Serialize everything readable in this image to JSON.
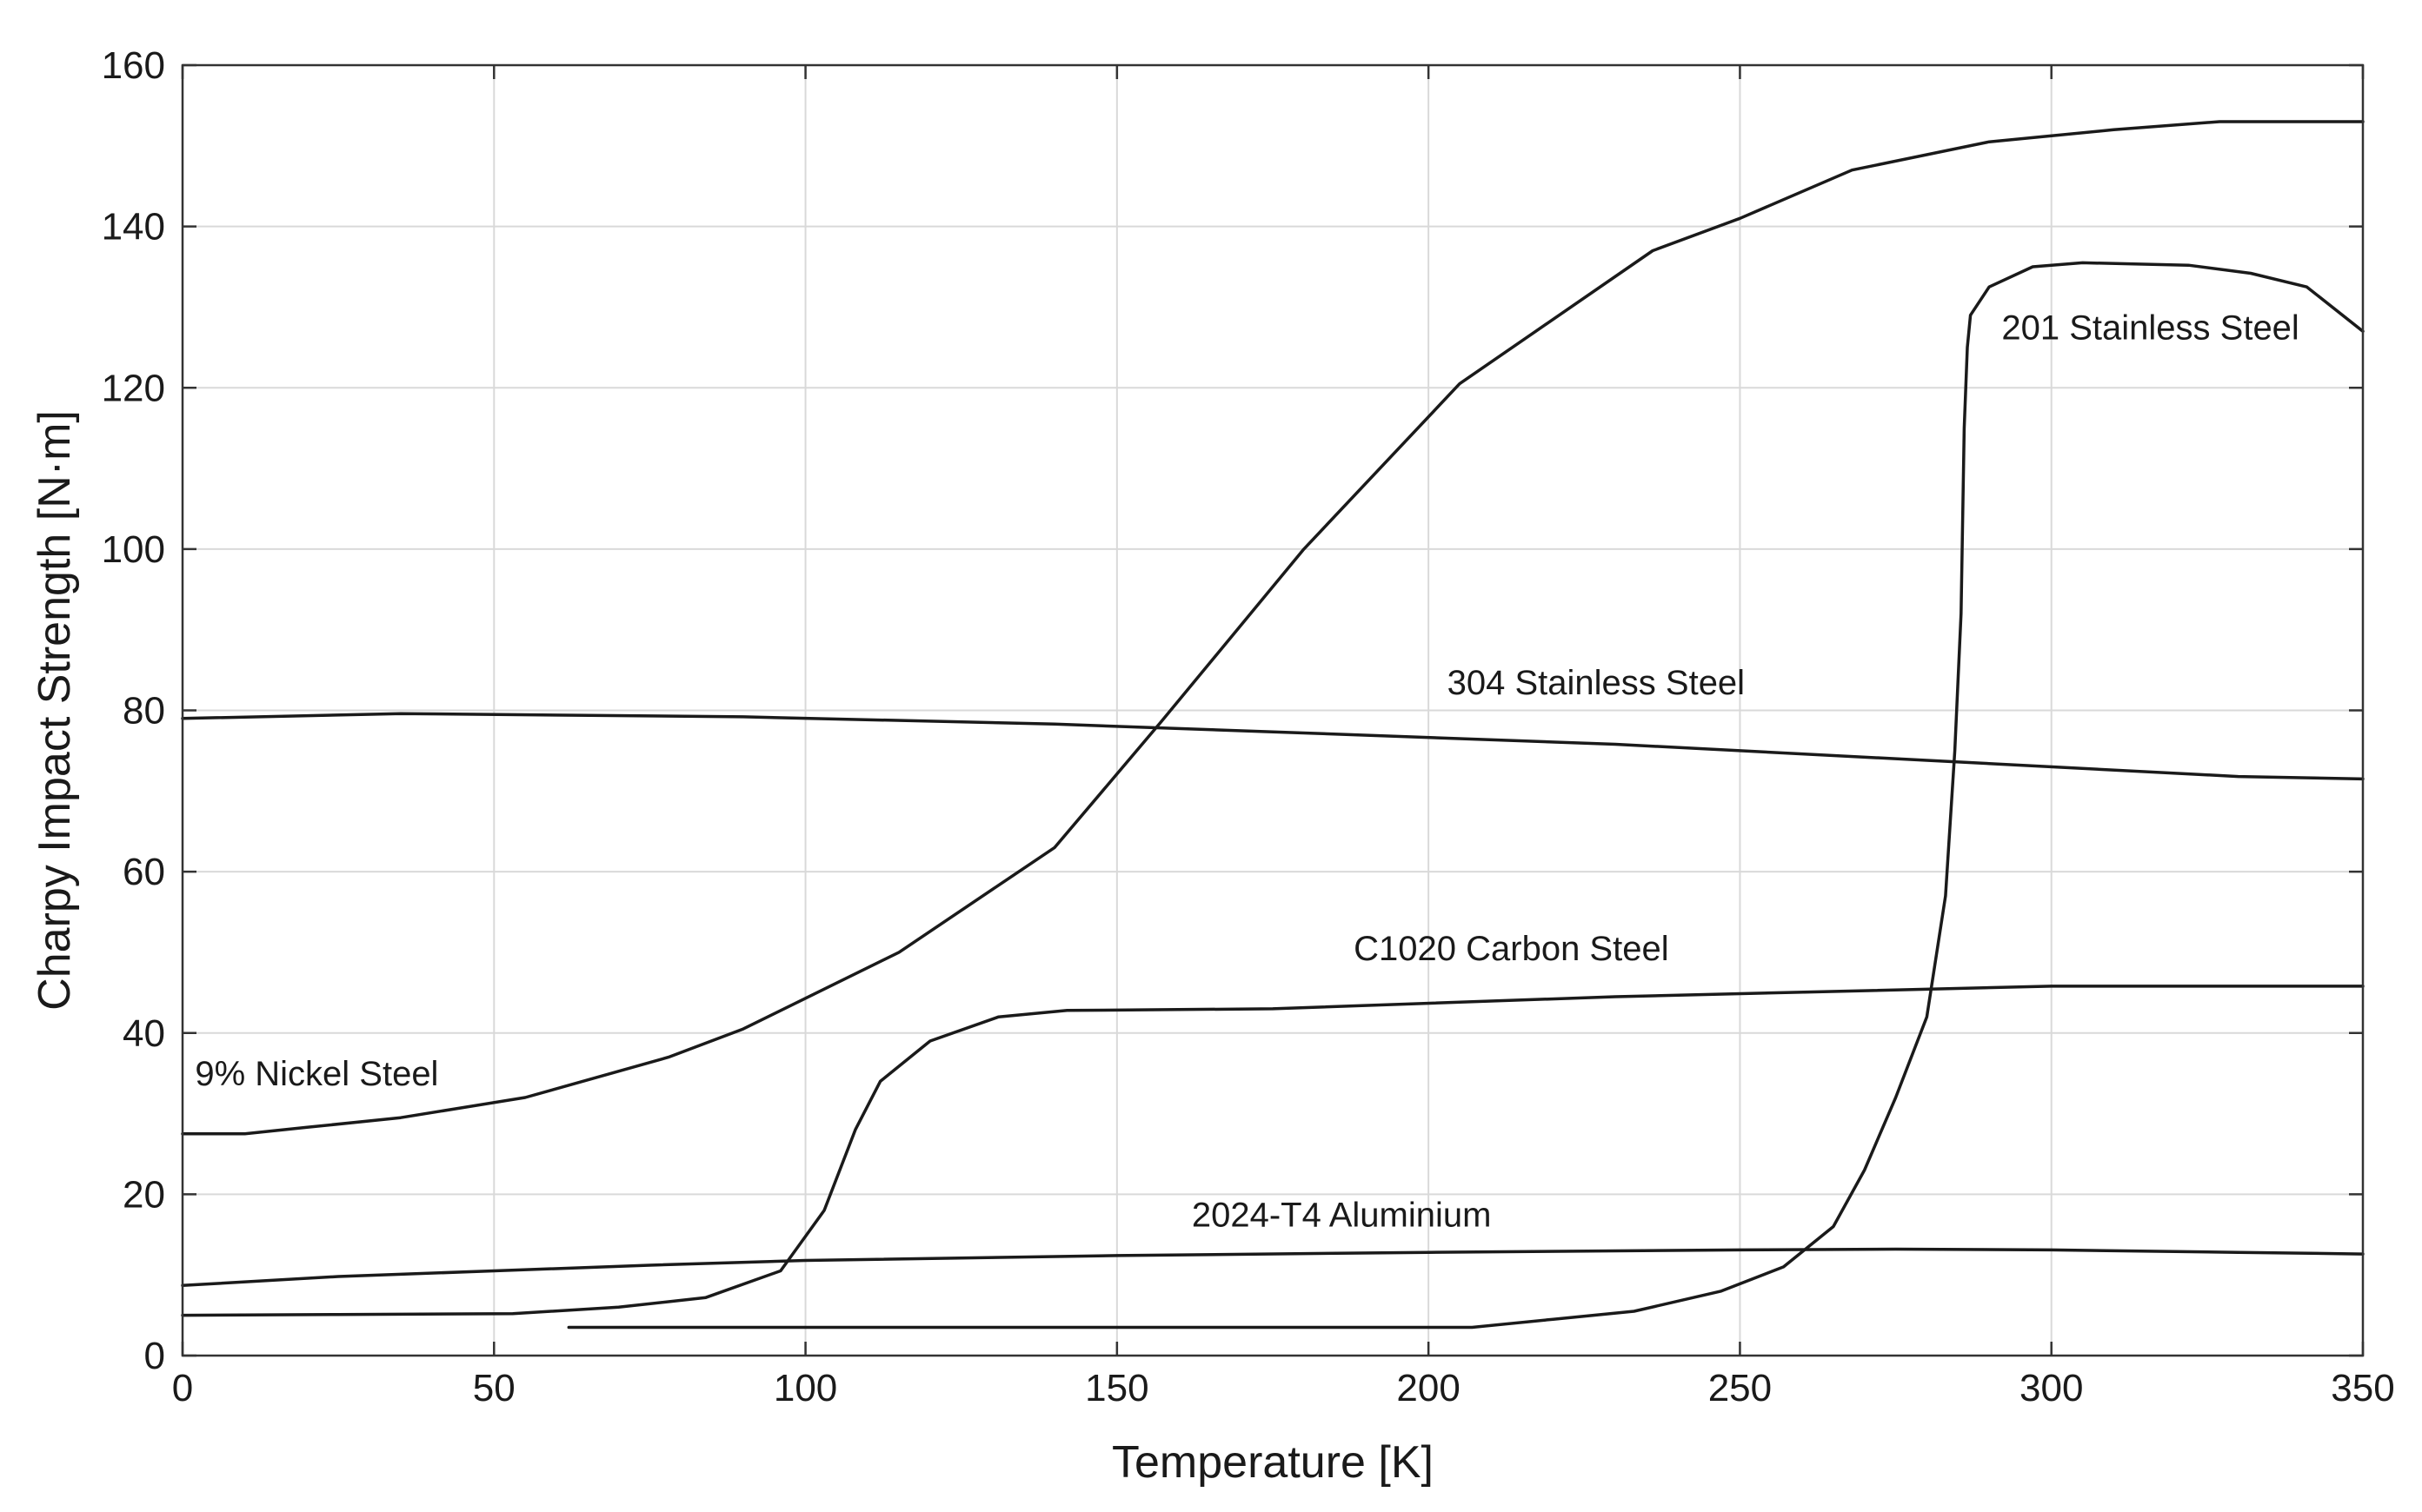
{
  "chart_data": {
    "type": "line",
    "title": "",
    "xlabel": "Temperature [K]",
    "ylabel": "Charpy Impact Strength [N·m]",
    "xlim": [
      0,
      350
    ],
    "ylim": [
      0,
      160
    ],
    "xticks": [
      0,
      50,
      100,
      150,
      200,
      250,
      300,
      350
    ],
    "yticks": [
      0,
      20,
      40,
      60,
      80,
      100,
      120,
      140,
      160
    ],
    "grid": true,
    "line_color": "#1a1a1a",
    "series": [
      {
        "name": "9% Nickel Steel",
        "points": [
          [
            0,
            27.5
          ],
          [
            10,
            27.5
          ],
          [
            20,
            28.3
          ],
          [
            35,
            29.5
          ],
          [
            55,
            32
          ],
          [
            78,
            37
          ],
          [
            90,
            40.5
          ],
          [
            115,
            50
          ],
          [
            140,
            63
          ],
          [
            157,
            78.5
          ],
          [
            180,
            100
          ],
          [
            205,
            120.5
          ],
          [
            236,
            137
          ],
          [
            250,
            141
          ],
          [
            268,
            147
          ],
          [
            290,
            150.5
          ],
          [
            310,
            152
          ],
          [
            327,
            153
          ],
          [
            350,
            153
          ]
        ],
        "label_at": [
          2,
          33.5
        ]
      },
      {
        "name": "201 Stainless Steel",
        "points": [
          [
            62,
            3.5
          ],
          [
            100,
            3.5
          ],
          [
            150,
            3.5
          ],
          [
            207,
            3.5
          ],
          [
            220,
            4.5
          ],
          [
            233,
            5.5
          ],
          [
            247,
            8
          ],
          [
            257,
            11
          ],
          [
            265,
            16
          ],
          [
            270,
            23
          ],
          [
            275,
            32
          ],
          [
            280,
            42
          ],
          [
            283,
            57
          ],
          [
            284.5,
            75
          ],
          [
            285.5,
            92
          ],
          [
            286,
            115
          ],
          [
            286.5,
            125
          ],
          [
            287,
            129
          ],
          [
            290,
            132.5
          ],
          [
            297,
            135
          ],
          [
            305,
            135.5
          ],
          [
            322,
            135.2
          ],
          [
            332,
            134.2
          ],
          [
            341,
            132.5
          ],
          [
            350,
            127
          ]
        ],
        "label_at": [
          292,
          126
        ]
      },
      {
        "name": "304 Stainless Steel",
        "points": [
          [
            0,
            79
          ],
          [
            35,
            79.6
          ],
          [
            90,
            79.2
          ],
          [
            140,
            78.3
          ],
          [
            180,
            77.2
          ],
          [
            230,
            75.8
          ],
          [
            280,
            73.8
          ],
          [
            330,
            71.8
          ],
          [
            350,
            71.5
          ]
        ],
        "label_at": [
          203,
          82
        ]
      },
      {
        "name": "C1020 Carbon Steel",
        "points": [
          [
            0,
            5
          ],
          [
            25,
            5.1
          ],
          [
            53,
            5.2
          ],
          [
            70,
            6
          ],
          [
            84,
            7.2
          ],
          [
            96,
            10.5
          ],
          [
            103,
            18
          ],
          [
            108,
            28
          ],
          [
            112,
            34
          ],
          [
            120,
            39
          ],
          [
            131,
            42
          ],
          [
            142,
            42.8
          ],
          [
            175,
            43
          ],
          [
            230,
            44.5
          ],
          [
            300,
            45.8
          ],
          [
            350,
            45.8
          ]
        ],
        "label_at": [
          188,
          49
        ]
      },
      {
        "name": "2024-T4 Aluminium",
        "points": [
          [
            0,
            8.7
          ],
          [
            25,
            9.8
          ],
          [
            50,
            10.5
          ],
          [
            75,
            11.2
          ],
          [
            100,
            11.8
          ],
          [
            150,
            12.4
          ],
          [
            200,
            12.8
          ],
          [
            250,
            13.1
          ],
          [
            275,
            13.2
          ],
          [
            300,
            13.1
          ],
          [
            330,
            12.8
          ],
          [
            350,
            12.6
          ]
        ],
        "label_at": [
          162,
          16
        ]
      }
    ]
  }
}
